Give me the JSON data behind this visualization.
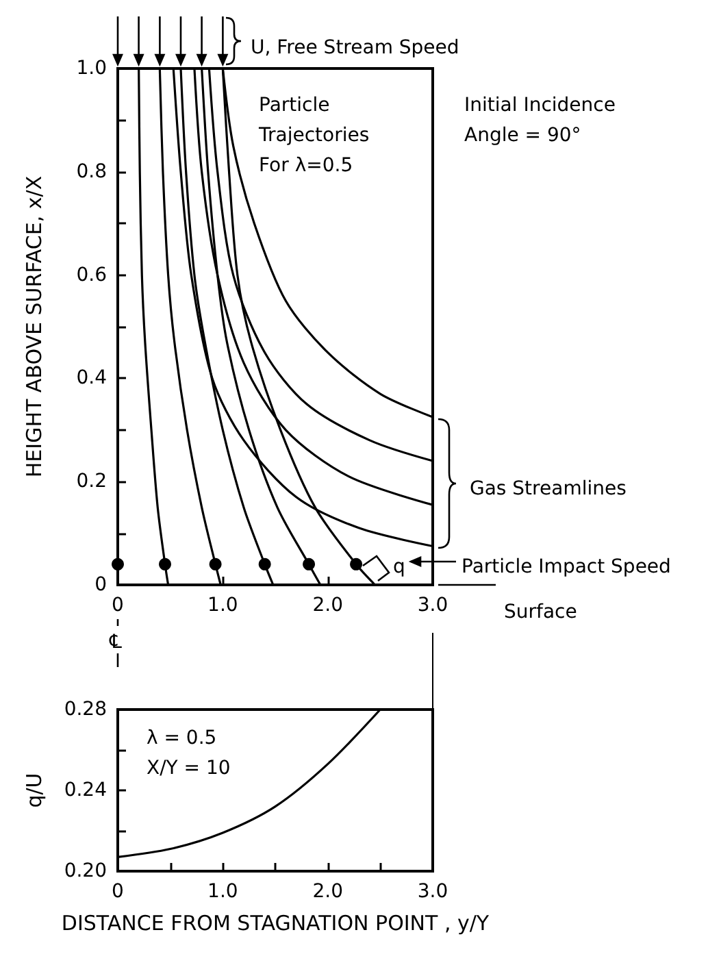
{
  "chart_data": [
    {
      "type": "line",
      "ylabel": "HEIGHT ABOVE SURFACE, x/X",
      "xlim": [
        0,
        3
      ],
      "ylim": [
        0,
        1
      ],
      "xticks": [
        0,
        {
          "value": 1,
          "label": "1.0"
        },
        {
          "value": 2,
          "label": "2.0"
        },
        {
          "value": 3,
          "label": "3.0"
        }
      ],
      "yticks": [
        0,
        {
          "value": 0.1,
          "label": null
        },
        0.2,
        {
          "value": 0.3,
          "label": null
        },
        0.4,
        {
          "value": 0.5,
          "label": null
        },
        0.6,
        {
          "value": 0.7,
          "label": null
        },
        0.8,
        {
          "value": 0.9,
          "label": null
        },
        {
          "value": 1,
          "label": "1.0"
        }
      ],
      "grid": false,
      "annotations": [
        "U, Free Stream Speed",
        "Particle Trajectories For λ=0.5",
        "Initial Incidence Angle = 90°",
        "Gas Streamlines",
        "q",
        "Particle Impact Speed",
        "Surface",
        "℄"
      ],
      "series": [
        {
          "color": "#000000",
          "x": [
            0,
            0,
            0
          ],
          "values": [
            1,
            0.04,
            0
          ]
        },
        {
          "color": "#000000",
          "x": [
            0.2,
            0.21,
            0.23,
            0.26,
            0.32,
            0.38,
            0.45,
            0.48
          ],
          "values": [
            1,
            0.8,
            0.6,
            0.47,
            0.3,
            0.15,
            0.04,
            0
          ]
        },
        {
          "color": "#000000",
          "x": [
            0.4,
            0.43,
            0.48,
            0.54,
            0.66,
            0.8,
            0.93,
            0.98
          ],
          "values": [
            1,
            0.8,
            0.6,
            0.47,
            0.3,
            0.15,
            0.04,
            0
          ]
        },
        {
          "color": "#000000",
          "x": [
            0.6,
            0.65,
            0.73,
            0.83,
            1.0,
            1.2,
            1.4,
            1.48
          ],
          "values": [
            1,
            0.8,
            0.6,
            0.47,
            0.3,
            0.15,
            0.04,
            0
          ]
        },
        {
          "color": "#000000",
          "x": [
            0.8,
            0.86,
            0.95,
            1.04,
            1.25,
            1.52,
            1.82,
            1.93
          ],
          "values": [
            1,
            0.8,
            0.6,
            0.47,
            0.3,
            0.15,
            0.04,
            0
          ]
        },
        {
          "color": "#000000",
          "x": [
            1.0,
            1.06,
            1.14,
            1.27,
            1.55,
            1.88,
            2.27,
            2.45
          ],
          "values": [
            1,
            0.8,
            0.6,
            0.47,
            0.3,
            0.15,
            0.04,
            0
          ]
        },
        {
          "color": "#000000",
          "x": [
            1.0,
            1.1,
            1.3,
            1.6,
            2.0,
            2.5,
            3.0
          ],
          "values": [
            1,
            0.85,
            0.7,
            0.55,
            0.45,
            0.37,
            0.325
          ]
        },
        {
          "color": "#000000",
          "x": [
            0.87,
            0.95,
            1.1,
            1.4,
            1.8,
            2.4,
            3.0
          ],
          "values": [
            1,
            0.8,
            0.6,
            0.45,
            0.35,
            0.28,
            0.24
          ]
        },
        {
          "color": "#000000",
          "x": [
            0.73,
            0.8,
            0.95,
            1.2,
            1.6,
            2.2,
            3.0
          ],
          "values": [
            1,
            0.8,
            0.6,
            0.43,
            0.3,
            0.21,
            0.155
          ]
        },
        {
          "color": "#000000",
          "x": [
            0.53,
            0.6,
            0.7,
            0.9,
            1.2,
            1.7,
            2.3,
            3.0
          ],
          "values": [
            1,
            0.8,
            0.6,
            0.4,
            0.28,
            0.17,
            0.11,
            0.075
          ]
        },
        {
          "type": "scatter",
          "color": "#000000",
          "x": [
            0,
            0.45,
            0.93,
            1.4,
            1.82,
            2.27
          ],
          "values": [
            0.04,
            0.04,
            0.04,
            0.04,
            0.04,
            0.04
          ]
        }
      ]
    },
    {
      "type": "line",
      "xlabel": "DISTANCE FROM STAGNATION POINT , y/Y",
      "ylabel": "q/U",
      "xlim": [
        0,
        3
      ],
      "ylim": [
        0.2,
        0.28
      ],
      "xticks": [
        0,
        {
          "value": 0.5,
          "label": null
        },
        {
          "value": 1,
          "label": "1.0"
        },
        {
          "value": 1.5,
          "label": null
        },
        {
          "value": 2,
          "label": "2.0"
        },
        {
          "value": 2.5,
          "label": null
        },
        {
          "value": 3,
          "label": "3.0"
        }
      ],
      "yticks": [
        {
          "value": 0.2,
          "label": "0.20"
        },
        {
          "value": 0.22,
          "label": null
        },
        {
          "value": 0.24,
          "label": "0.24"
        },
        {
          "value": 0.26,
          "label": null
        },
        {
          "value": 0.28,
          "label": "0.28"
        }
      ],
      "grid": false,
      "annotations": [
        "λ = 0.5",
        "X/Y = 10"
      ],
      "series": [
        {
          "color": "#000000",
          "x": [
            0,
            0.5,
            1.0,
            1.5,
            2.0,
            2.5
          ],
          "values": [
            0.207,
            0.211,
            0.219,
            0.232,
            0.253,
            0.28
          ]
        }
      ]
    }
  ]
}
